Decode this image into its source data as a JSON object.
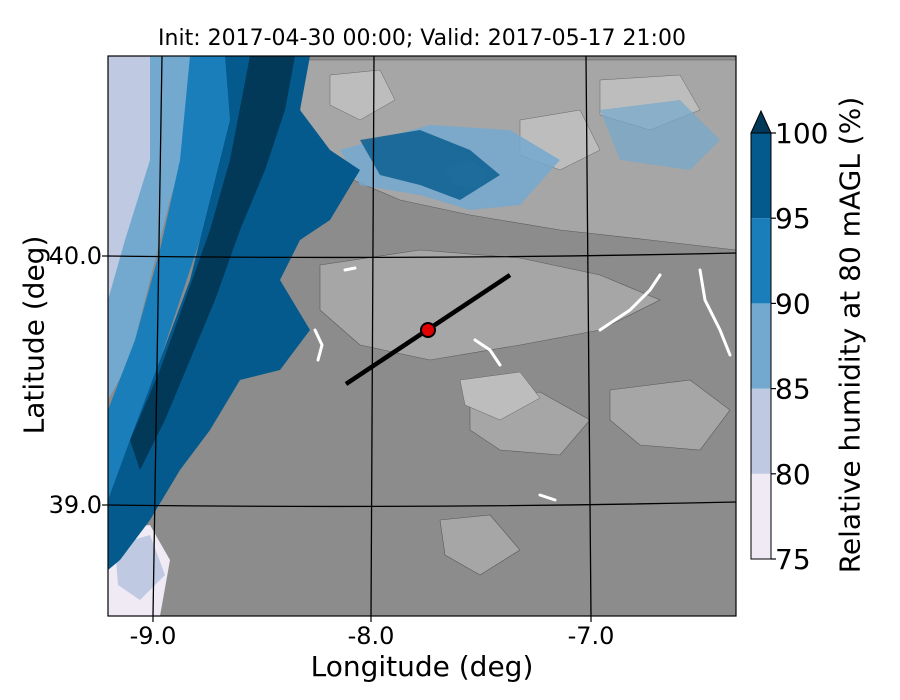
{
  "title": "Init: 2017-04-30 00:00; Valid: 2017-05-17 21:00",
  "xlabel": "Longitude (deg)",
  "ylabel": "Latitude (deg)",
  "colorbar": {
    "label": "Relative humidity at 80 mAGL (%)",
    "ticks": [
      "75",
      "80",
      "85",
      "90",
      "95",
      "100"
    ],
    "levels": [
      75,
      80,
      85,
      90,
      95,
      100
    ],
    "colors": [
      "#efeaf4",
      "#bfc9e2",
      "#74a9cf",
      "#1a7ebb",
      "#045a8d",
      "#023858"
    ],
    "extend": "max"
  },
  "map": {
    "lon_ticks": [
      "-9.0",
      "-8.0",
      "-7.0"
    ],
    "lat_ticks": [
      "40.0",
      "39.0"
    ],
    "land_color": "#8c8c8c",
    "transect_color": "#000000",
    "point_color": "#e00000"
  }
}
